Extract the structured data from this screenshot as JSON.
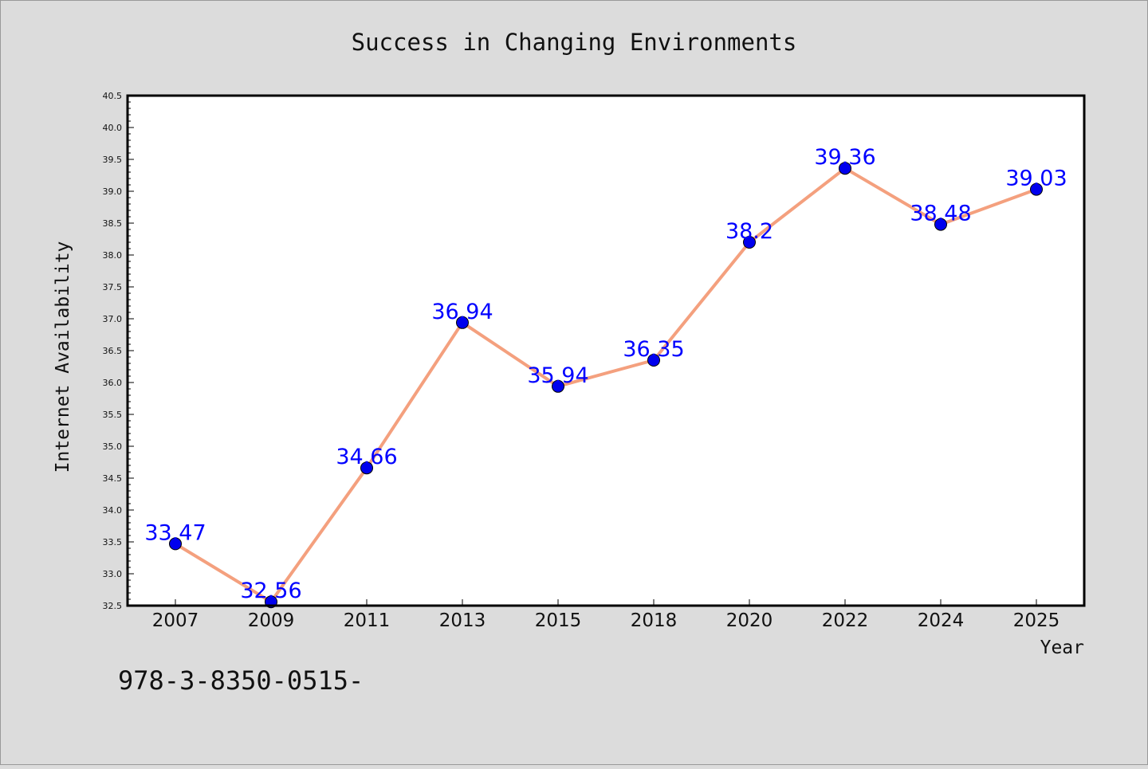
{
  "chart_data": {
    "type": "line",
    "title": "Success in Changing Environments",
    "xlabel": "Year",
    "ylabel": "Internet Availability",
    "categories": [
      "2007",
      "2009",
      "2011",
      "2013",
      "2015",
      "2018",
      "2020",
      "2022",
      "2024",
      "2025"
    ],
    "series": [
      {
        "values": [
          33.47,
          32.56,
          34.66,
          36.94,
          35.94,
          36.35,
          38.2,
          39.36,
          38.48,
          39.03
        ],
        "labels": [
          "33.47",
          "32.56",
          "34.66",
          "36.94",
          "35.94",
          "36.35",
          "38.2",
          "39.36",
          "38.48",
          "39.03"
        ]
      }
    ],
    "yticks": [
      "32.5",
      "33.0",
      "33.5",
      "34.0",
      "34.5",
      "35.0",
      "35.5",
      "36.0",
      "36.5",
      "37.0",
      "37.5",
      "38.0",
      "38.5",
      "39.0",
      "39.5",
      "40.0",
      "40.5"
    ],
    "ylim": [
      32.5,
      40.5
    ],
    "grid": false,
    "colors": {
      "line": "#f4a07e",
      "marker": "#0000ee",
      "label": "#0000ff",
      "background": "#dcdcdc",
      "plot_background": "#ffffff"
    }
  },
  "footer": {
    "isbn": "978-3-8350-0515-"
  }
}
